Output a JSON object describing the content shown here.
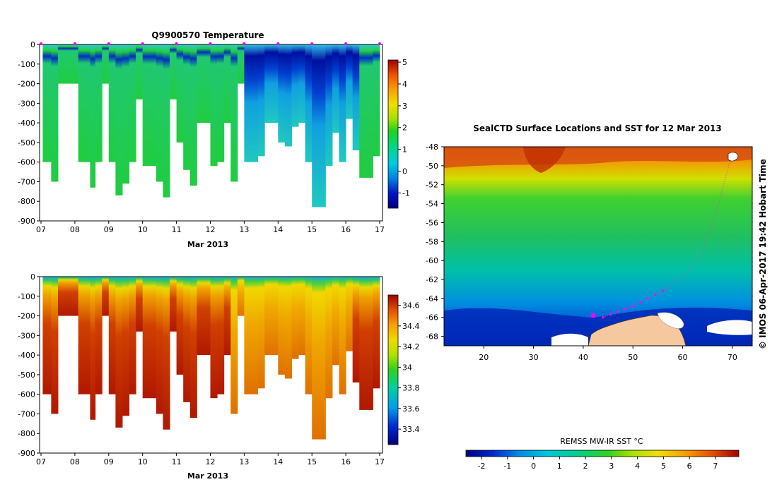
{
  "figure": {
    "copyright": "© IMOS 06-Apr-2017 19:42 Hobart Time"
  },
  "chart_data": [
    {
      "id": "temperature_section",
      "type": "heatmap",
      "title": "Q9900570  Temperature",
      "xlabel": "Mar 2013",
      "ylabel": "",
      "x_tick_labels": [
        "07",
        "08",
        "09",
        "10",
        "11",
        "12",
        "13",
        "14",
        "15",
        "16",
        "17"
      ],
      "x_range_days": [
        7,
        17
      ],
      "ylim": [
        -900,
        0
      ],
      "y_ticks": [
        0,
        -100,
        -200,
        -300,
        -400,
        -500,
        -600,
        -700,
        -800,
        -900
      ],
      "colorbar": {
        "min": -1.7,
        "max": 5.1,
        "ticks": [
          5,
          4,
          3,
          2,
          1,
          0,
          -1
        ]
      },
      "profile_times": [
        7.05,
        7.3,
        7.5,
        7.7,
        7.9,
        8.1,
        8.3,
        8.45,
        8.6,
        8.8,
        9.0,
        9.2,
        9.4,
        9.6,
        9.8,
        10.0,
        10.2,
        10.4,
        10.6,
        10.8,
        11.0,
        11.2,
        11.4,
        11.6,
        11.8,
        12.0,
        12.2,
        12.4,
        12.6,
        12.8,
        13.0,
        13.2,
        13.4,
        13.6,
        13.8,
        14.0,
        14.2,
        14.4,
        14.6,
        14.8,
        15.0,
        15.2,
        15.4,
        15.6,
        15.8,
        16.0,
        16.2,
        16.4,
        16.6,
        16.8
      ],
      "profile_max_depths": [
        -600,
        -700,
        -200,
        -200,
        -200,
        -600,
        -600,
        -730,
        -600,
        -200,
        -600,
        -770,
        -710,
        -600,
        -280,
        -620,
        -620,
        -700,
        -780,
        -280,
        -500,
        -640,
        -720,
        -400,
        -400,
        -620,
        -600,
        -400,
        -700,
        -200,
        -600,
        -600,
        -570,
        -400,
        -400,
        -500,
        -520,
        -420,
        -400,
        -600,
        -830,
        -830,
        -620,
        -450,
        -600,
        -380,
        -540,
        -680,
        -680,
        -570
      ],
      "surface_marker_times": [
        7,
        8,
        9,
        10,
        11,
        12,
        13,
        14,
        15,
        16,
        17
      ]
    },
    {
      "id": "salinity_section",
      "type": "heatmap",
      "title": "",
      "xlabel": "Mar 2013",
      "ylabel": "",
      "x_tick_labels": [
        "07",
        "08",
        "09",
        "10",
        "11",
        "12",
        "13",
        "14",
        "15",
        "16",
        "17"
      ],
      "x_range_days": [
        7,
        17
      ],
      "ylim": [
        -900,
        0
      ],
      "y_ticks": [
        0,
        -100,
        -200,
        -300,
        -400,
        -500,
        -600,
        -700,
        -800,
        -900
      ],
      "colorbar": {
        "min": 33.25,
        "max": 34.7,
        "ticks": [
          34.6,
          34.4,
          34.2,
          34,
          33.8,
          33.6,
          33.4
        ]
      }
    },
    {
      "id": "sst_map",
      "type": "heatmap",
      "title": "SealCTD Surface Locations and SST for 12 Mar 2013",
      "xlabel": "",
      "ylabel": "",
      "xlim": [
        12,
        74
      ],
      "ylim": [
        -69,
        -48
      ],
      "x_ticks": [
        20,
        30,
        40,
        50,
        60,
        70
      ],
      "y_ticks": [
        -48,
        -50,
        -52,
        -54,
        -56,
        -58,
        -60,
        -62,
        -64,
        -66,
        -68
      ],
      "colorbar": {
        "label": "REMSS MW-IR SST °C",
        "min": -2.6,
        "max": 7.9,
        "ticks": [
          -2,
          -1,
          0,
          1,
          2,
          3,
          4,
          5,
          6,
          7
        ]
      },
      "track_lon": [
        44.0,
        45.5,
        47.0,
        48.5,
        50.0,
        51.5,
        53.0,
        54.5,
        56.0,
        58.5,
        61.0,
        63.5,
        65.5,
        67.5,
        69.5
      ],
      "track_lat": [
        -66.0,
        -65.7,
        -65.4,
        -65.1,
        -64.8,
        -64.4,
        -64.0,
        -63.6,
        -63.2,
        -62.4,
        -61.2,
        -59.5,
        -57.0,
        -53.5,
        -49.5
      ],
      "current_position": {
        "lon": 42.0,
        "lat": -65.8
      }
    }
  ]
}
